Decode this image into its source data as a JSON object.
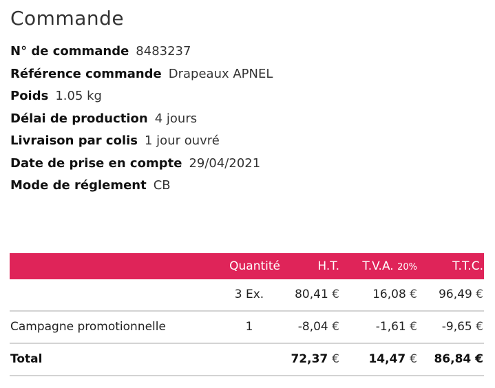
{
  "title": "Commande",
  "details": [
    {
      "key": "N° de commande",
      "value": "8483237"
    },
    {
      "key": "Référence commande",
      "value": "Drapeaux APNEL"
    },
    {
      "key": "Poids",
      "value": "1.05 kg"
    },
    {
      "key": "Délai de production",
      "value": "4 jours"
    },
    {
      "key": "Livraison par colis",
      "value": "1 jour ouvré"
    },
    {
      "key": "Date de prise en compte",
      "value": "29/04/2021"
    },
    {
      "key": "Mode de réglement",
      "value": "CB"
    }
  ],
  "table": {
    "header": {
      "quantity": "Quantité",
      "ht": "H.T.",
      "tva": "T.V.A.",
      "tva_rate": "20%",
      "ttc": "T.T.C."
    },
    "currency": "€",
    "rows": [
      {
        "label": "",
        "quantity": "3 Ex.",
        "ht": "80,41",
        "tva": "16,08",
        "ttc": "96,49"
      },
      {
        "label": "Campagne promotionnelle",
        "quantity": "1",
        "ht": "-8,04",
        "tva": "-1,61",
        "ttc": "-9,65"
      }
    ],
    "total": {
      "label": "Total",
      "ht": "72,37",
      "tva": "14,47",
      "ttc": "86,84"
    }
  },
  "colors": {
    "header_bg": "#df2459"
  }
}
